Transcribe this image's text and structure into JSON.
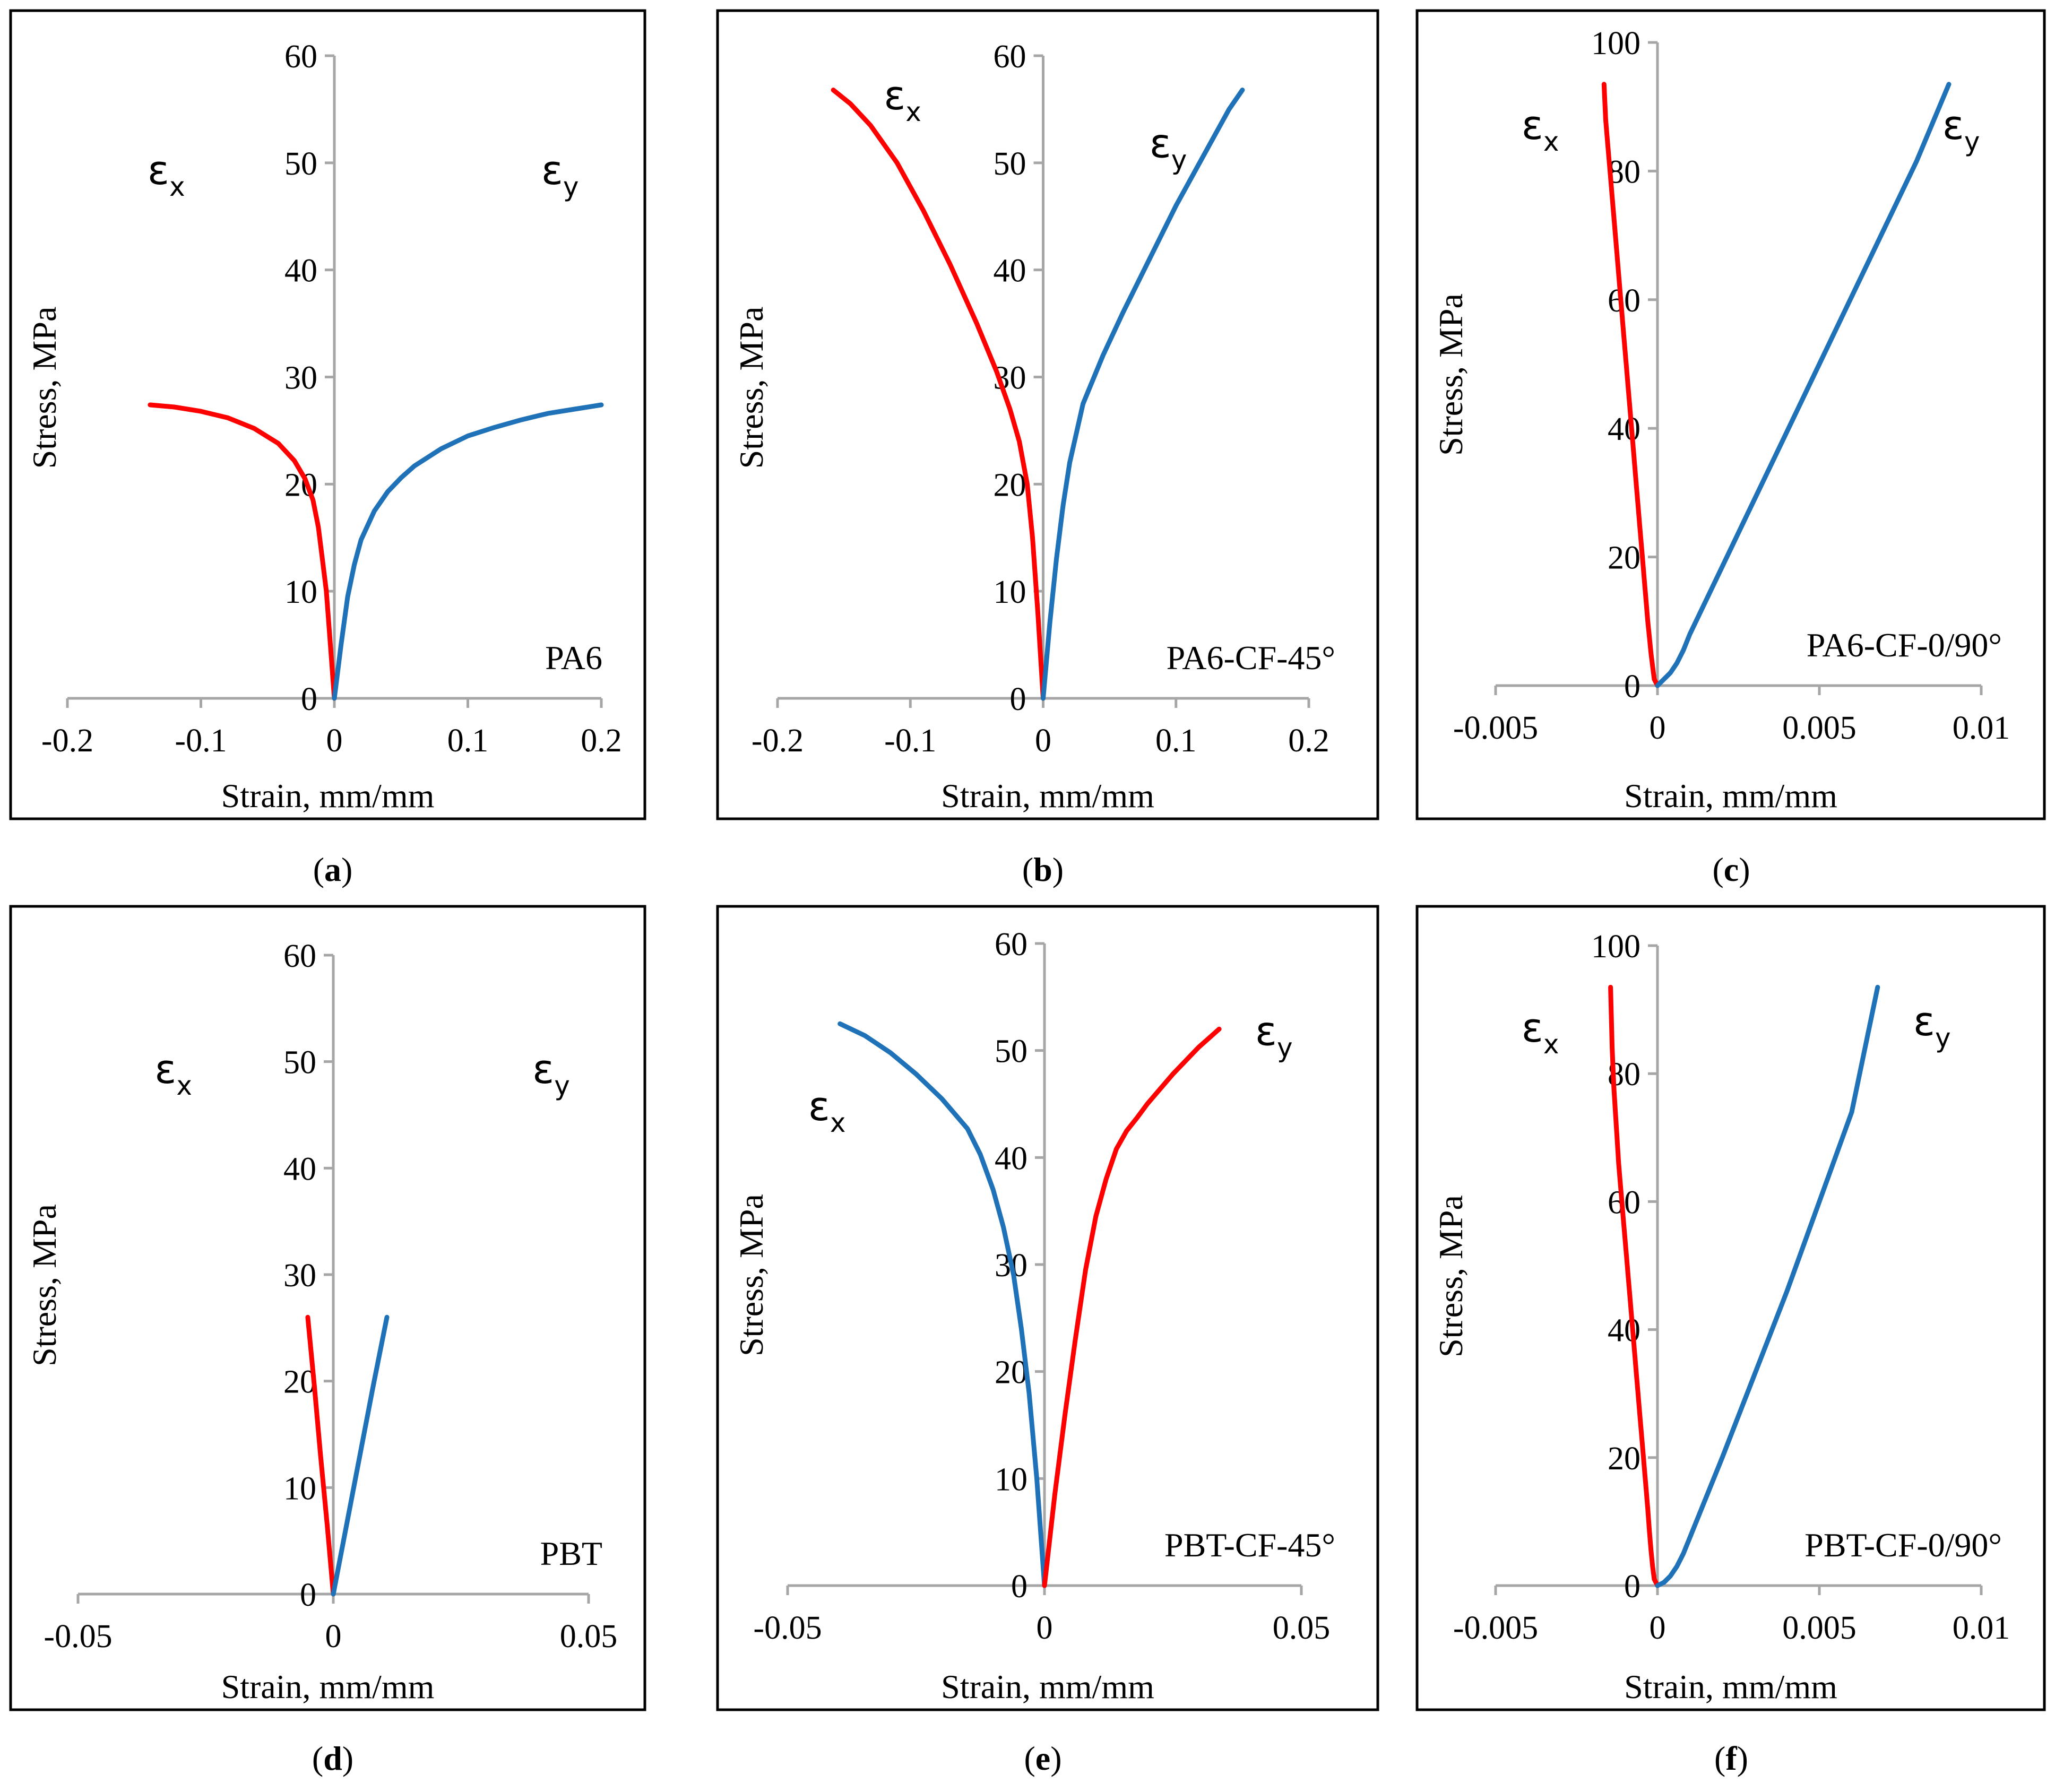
{
  "colors": {
    "red": "#ff0000",
    "blue": "#1f72b8",
    "frame": "#000000",
    "axis": "#a6a6a6"
  },
  "chart_data": [
    {
      "id": "a",
      "type": "line",
      "caption": {
        "open": "(",
        "letter": "a",
        "close": ")"
      },
      "material_label": "PA6",
      "xlabel": "Strain, mm/mm",
      "ylabel": "Stress, MPa",
      "xlim": [
        -0.2,
        0.2
      ],
      "ylim": [
        0,
        60
      ],
      "xticks": [
        -0.2,
        -0.1,
        0,
        0.1,
        0.2
      ],
      "xtick_labels": [
        "-0.2",
        "-0.1",
        "0",
        "0.1",
        "0.2"
      ],
      "yticks": [
        0,
        10,
        20,
        30,
        40,
        50,
        60
      ],
      "ytick_labels": [
        "0",
        "10",
        "20",
        "30",
        "40",
        "50",
        "60"
      ],
      "strain_labels": [
        {
          "symbol": "ε",
          "sub": "x",
          "x": -0.14,
          "y": 48
        },
        {
          "symbol": "ε",
          "sub": "y",
          "x": 0.155,
          "y": 48
        }
      ],
      "series": [
        {
          "color": "red",
          "x": [
            0,
            -0.003,
            -0.006,
            -0.009,
            -0.012,
            -0.016,
            -0.022,
            -0.03,
            -0.042,
            -0.06,
            -0.08,
            -0.1,
            -0.12,
            -0.138
          ],
          "y": [
            0,
            5,
            10,
            13,
            16,
            18.5,
            20.5,
            22.2,
            23.8,
            25.2,
            26.2,
            26.8,
            27.2,
            27.4
          ]
        },
        {
          "color": "blue",
          "x": [
            0,
            0.005,
            0.01,
            0.015,
            0.02,
            0.03,
            0.04,
            0.05,
            0.06,
            0.08,
            0.1,
            0.12,
            0.14,
            0.16,
            0.18,
            0.2
          ],
          "y": [
            0,
            5,
            9.5,
            12.5,
            14.8,
            17.5,
            19.3,
            20.6,
            21.7,
            23.3,
            24.5,
            25.3,
            26,
            26.6,
            27,
            27.4
          ]
        }
      ]
    },
    {
      "id": "b",
      "type": "line",
      "caption": {
        "open": "(",
        "letter": "b",
        "close": ")"
      },
      "material_label": "PA6-CF-45°",
      "xlabel": "Strain, mm/mm",
      "ylabel": "Stress, MPa",
      "xlim": [
        -0.2,
        0.2
      ],
      "ylim": [
        0,
        60
      ],
      "xticks": [
        -0.2,
        -0.1,
        0,
        0.1,
        0.2
      ],
      "xtick_labels": [
        "-0.2",
        "-0.1",
        "0",
        "0.1",
        "0.2"
      ],
      "yticks": [
        0,
        10,
        20,
        30,
        40,
        50,
        60
      ],
      "ytick_labels": [
        "0",
        "10",
        "20",
        "30",
        "40",
        "50",
        "60"
      ],
      "strain_labels": [
        {
          "symbol": "ε",
          "sub": "x",
          "x": -0.12,
          "y": 55
        },
        {
          "symbol": "ε",
          "sub": "y",
          "x": 0.08,
          "y": 50.5
        }
      ],
      "series": [
        {
          "color": "red",
          "x": [
            0,
            -0.004,
            -0.008,
            -0.012,
            -0.018,
            -0.025,
            -0.035,
            -0.05,
            -0.07,
            -0.09,
            -0.11,
            -0.13,
            -0.145,
            -0.158
          ],
          "y": [
            0,
            8,
            15,
            20,
            24,
            27,
            30.5,
            35,
            40.5,
            45.5,
            50,
            53.5,
            55.5,
            56.8
          ]
        },
        {
          "color": "blue",
          "x": [
            0,
            0.005,
            0.01,
            0.015,
            0.02,
            0.03,
            0.045,
            0.06,
            0.08,
            0.1,
            0.12,
            0.14,
            0.15
          ],
          "y": [
            0,
            7,
            13,
            18,
            22,
            27.5,
            32,
            36,
            41,
            46,
            50.5,
            55,
            56.8
          ]
        }
      ]
    },
    {
      "id": "c",
      "type": "line",
      "caption": {
        "open": "(",
        "letter": "c",
        "close": ")"
      },
      "material_label": "PA6-CF-0/90°",
      "xlabel": "Strain, mm/mm",
      "ylabel": "Stress, MPa",
      "xlim": [
        -0.005,
        0.01
      ],
      "ylim": [
        0,
        100
      ],
      "xticks": [
        -0.005,
        0,
        0.005,
        0.01
      ],
      "xtick_labels": [
        "-0.005",
        "0",
        "0.005",
        "0.01"
      ],
      "yticks": [
        0,
        20,
        40,
        60,
        80,
        100
      ],
      "ytick_labels": [
        "0",
        "20",
        "40",
        "60",
        "80",
        "100"
      ],
      "strain_labels": [
        {
          "symbol": "ε",
          "sub": "x",
          "x": -0.0042,
          "y": 85
        },
        {
          "symbol": "ε",
          "sub": "y",
          "x": 0.0088,
          "y": 85
        }
      ],
      "series": [
        {
          "color": "red",
          "x": [
            0,
            -0.0001,
            -0.00015,
            -0.0002,
            -0.00025,
            -0.0003,
            -0.00035,
            -0.0004,
            -0.00045,
            -0.0005,
            -0.00055,
            -0.0006,
            -0.00065,
            -0.0007,
            -0.00075,
            -0.0008,
            -0.00085,
            -0.0009,
            -0.00095,
            -0.001,
            -0.00105,
            -0.0011,
            -0.00115,
            -0.0012,
            -0.00125,
            -0.0013,
            -0.00135,
            -0.0014,
            -0.00145,
            -0.0015,
            -0.00155,
            -0.0016,
            -0.00165
          ],
          "y": [
            0,
            1,
            3,
            5,
            7.5,
            10,
            13,
            16,
            19,
            22,
            25,
            28,
            31,
            34,
            37,
            40,
            43,
            46,
            49,
            52,
            55,
            58,
            61,
            64,
            67,
            70,
            73,
            76,
            79,
            82,
            85,
            88,
            93.5
          ]
        },
        {
          "color": "blue",
          "x": [
            0,
            0.0002,
            0.0004,
            0.0006,
            0.0008,
            0.001,
            0.002,
            0.003,
            0.004,
            0.005,
            0.006,
            0.007,
            0.008,
            0.009
          ],
          "y": [
            0,
            1,
            2,
            3.5,
            5.5,
            8,
            18.5,
            29,
            39.5,
            50,
            60.5,
            71,
            81.5,
            93.5
          ]
        }
      ]
    },
    {
      "id": "d",
      "type": "line",
      "caption": {
        "open": "(",
        "letter": "d",
        "close": ")"
      },
      "material_label": "PBT",
      "xlabel": "Strain, mm/mm",
      "ylabel": "Stress, MPa",
      "xlim": [
        -0.05,
        0.05
      ],
      "ylim": [
        0,
        60
      ],
      "xticks": [
        -0.05,
        0,
        0.05
      ],
      "xtick_labels": [
        "-0.05",
        "0",
        "0.05"
      ],
      "yticks": [
        0,
        10,
        20,
        30,
        40,
        50,
        60
      ],
      "ytick_labels": [
        "0",
        "10",
        "20",
        "30",
        "40",
        "50",
        "60"
      ],
      "strain_labels": [
        {
          "symbol": "ε",
          "sub": "x",
          "x": -0.035,
          "y": 48
        },
        {
          "symbol": "ε",
          "sub": "y",
          "x": 0.039,
          "y": 48
        }
      ],
      "series": [
        {
          "color": "red",
          "x": [
            0,
            -0.0012,
            -0.0025,
            -0.0037,
            -0.005
          ],
          "y": [
            0,
            6.5,
            13,
            19.5,
            26
          ]
        },
        {
          "color": "blue",
          "x": [
            0,
            0.0026,
            0.0052,
            0.0078,
            0.0105
          ],
          "y": [
            0,
            6.5,
            13,
            19.5,
            26
          ]
        }
      ]
    },
    {
      "id": "e",
      "type": "line",
      "caption": {
        "open": "(",
        "letter": "e",
        "close": ")"
      },
      "material_label": "PBT-CF-45°",
      "xlabel": "Strain, mm/mm",
      "ylabel": "Stress, MPa",
      "xlim": [
        -0.05,
        0.05
      ],
      "ylim": [
        0,
        60
      ],
      "xticks": [
        -0.05,
        0,
        0.05
      ],
      "xtick_labels": [
        "-0.05",
        "0",
        "0.05"
      ],
      "yticks": [
        0,
        10,
        20,
        30,
        40,
        50,
        60
      ],
      "ytick_labels": [
        "0",
        "10",
        "20",
        "30",
        "40",
        "50",
        "60"
      ],
      "strain_labels": [
        {
          "symbol": "ε",
          "sub": "x",
          "x": -0.046,
          "y": 43.5
        },
        {
          "symbol": "ε",
          "sub": "y",
          "x": 0.041,
          "y": 50.5
        }
      ],
      "series": [
        {
          "color": "blue",
          "x": [
            0,
            -0.0015,
            -0.003,
            -0.0045,
            -0.006,
            -0.008,
            -0.01,
            -0.0125,
            -0.015,
            -0.02,
            -0.025,
            -0.03,
            -0.035,
            -0.0398
          ],
          "y": [
            0,
            10,
            18,
            24,
            29,
            33.5,
            37,
            40.3,
            42.7,
            45.5,
            47.8,
            49.8,
            51.4,
            52.5
          ]
        },
        {
          "color": "red",
          "x": [
            0,
            0.002,
            0.004,
            0.006,
            0.008,
            0.01,
            0.012,
            0.014,
            0.016,
            0.018,
            0.02,
            0.025,
            0.03,
            0.034
          ],
          "y": [
            0,
            8.5,
            16,
            23,
            29.5,
            34.5,
            38,
            40.8,
            42.5,
            43.7,
            45,
            47.8,
            50.3,
            52
          ]
        }
      ]
    },
    {
      "id": "f",
      "type": "line",
      "caption": {
        "open": "(",
        "letter": "f",
        "close": ")"
      },
      "material_label": "PBT-CF-0/90°",
      "xlabel": "Strain, mm/mm",
      "ylabel": "Stress, MPa",
      "xlim": [
        -0.005,
        0.01
      ],
      "ylim": [
        0,
        100
      ],
      "xticks": [
        -0.005,
        0,
        0.005,
        0.01
      ],
      "xtick_labels": [
        "-0.005",
        "0",
        "0.005",
        "0.01"
      ],
      "yticks": [
        0,
        20,
        40,
        60,
        80,
        100
      ],
      "ytick_labels": [
        "0",
        "20",
        "40",
        "60",
        "80",
        "100"
      ],
      "strain_labels": [
        {
          "symbol": "ε",
          "sub": "x",
          "x": -0.0042,
          "y": 85
        },
        {
          "symbol": "ε",
          "sub": "y",
          "x": 0.0079,
          "y": 86
        }
      ],
      "series": [
        {
          "color": "red",
          "x": [
            0,
            -0.0001,
            -0.00015,
            -0.0002,
            -0.00025,
            -0.0003,
            -0.00035,
            -0.0004,
            -0.00045,
            -0.0005,
            -0.00055,
            -0.0006,
            -0.00065,
            -0.0007,
            -0.00075,
            -0.0008,
            -0.00085,
            -0.0009,
            -0.00095,
            -0.001,
            -0.00105,
            -0.0011,
            -0.00115,
            -0.0012,
            -0.00125,
            -0.0013,
            -0.00135,
            -0.0014,
            -0.00145
          ],
          "y": [
            0,
            1,
            3,
            5.5,
            8.5,
            12,
            15,
            18,
            21,
            24,
            27,
            30,
            33,
            36,
            39,
            42,
            45,
            48,
            51,
            54,
            57,
            60,
            63,
            66,
            70,
            74,
            78,
            84,
            93.5
          ]
        },
        {
          "color": "blue",
          "x": [
            0,
            0.0002,
            0.0004,
            0.0006,
            0.0008,
            0.001,
            0.002,
            0.003,
            0.004,
            0.005,
            0.006,
            0.0068
          ],
          "y": [
            0,
            0.5,
            1.5,
            3,
            5,
            7.5,
            20,
            33,
            46,
            60,
            74,
            93.5
          ]
        }
      ]
    }
  ]
}
